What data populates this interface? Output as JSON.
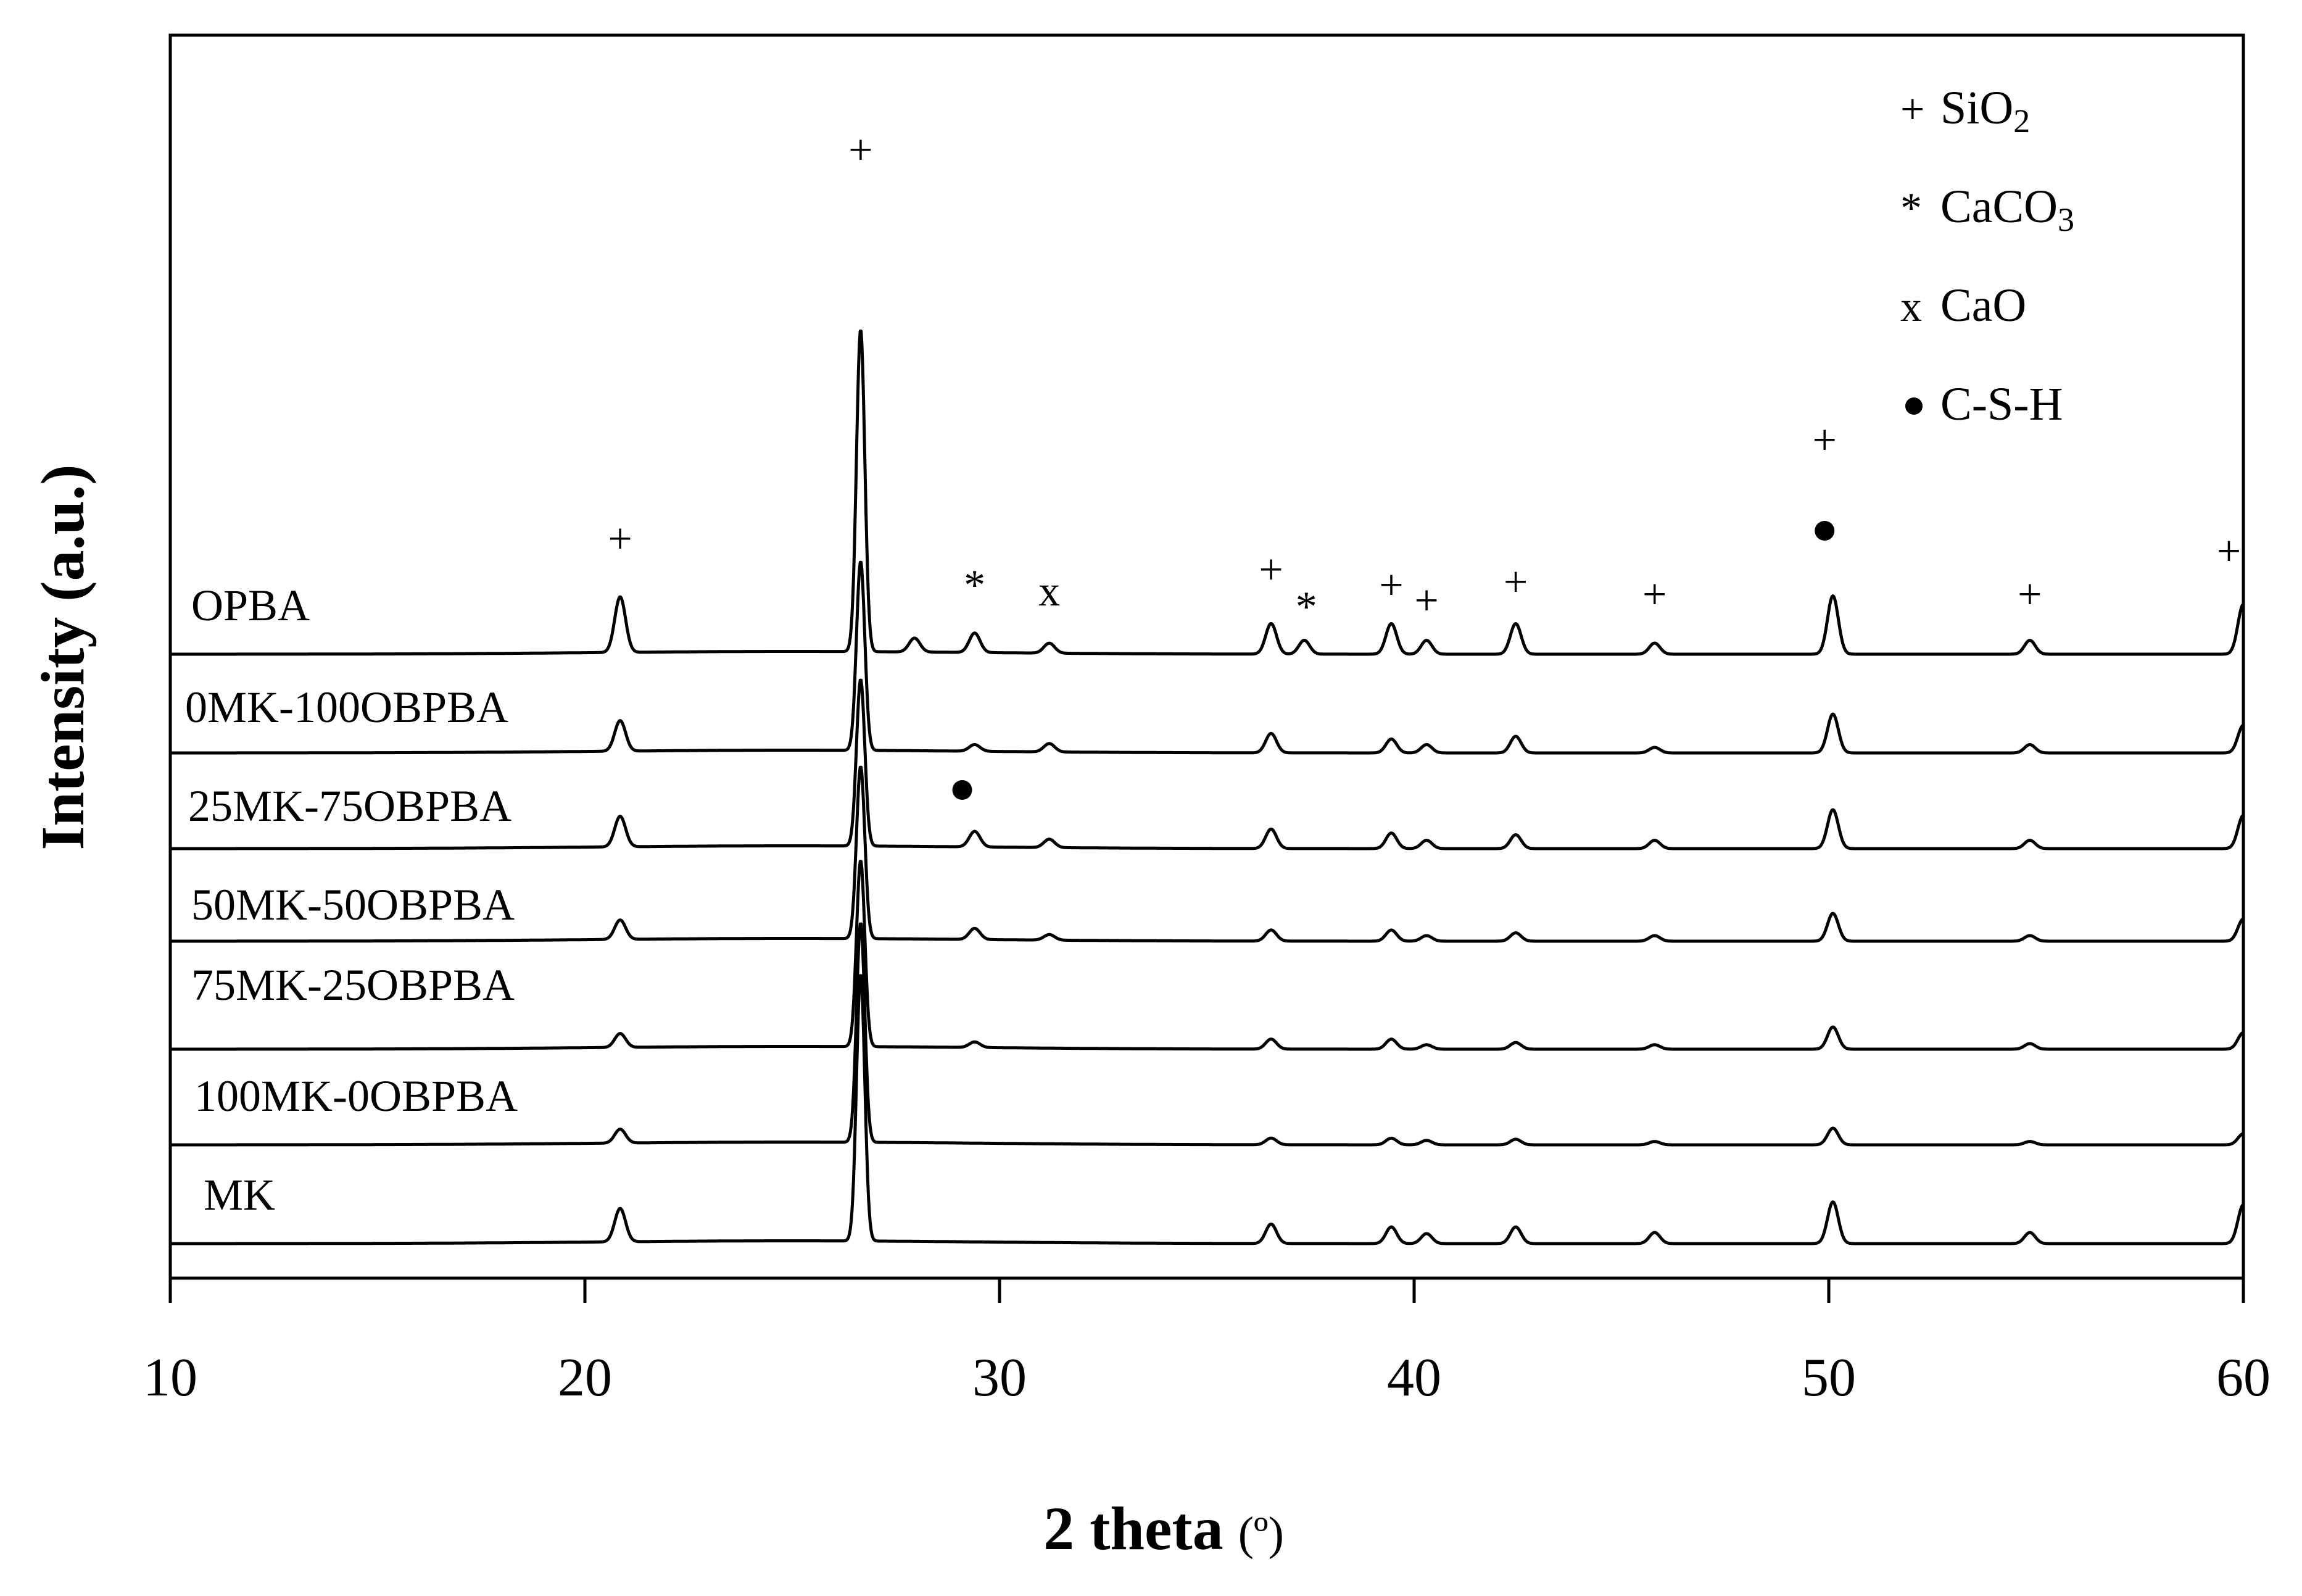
{
  "chart_data": {
    "type": "line",
    "xlabel": "2 theta",
    "xlabel_unit": "(º)",
    "ylabel": "Intensity (a.u.)",
    "xlim": [
      10,
      60
    ],
    "xticks": [
      "10",
      "20",
      "30",
      "40",
      "50",
      "60"
    ],
    "grid": false,
    "legend_position": "top-right",
    "legend": [
      {
        "symbol": "+",
        "label": "SiO",
        "sub": "2"
      },
      {
        "symbol": "*",
        "label": "CaCO",
        "sub": "3"
      },
      {
        "symbol": "x",
        "label": "CaO",
        "sub": ""
      },
      {
        "symbol": "●",
        "label": "C-S-H",
        "sub": ""
      }
    ],
    "series": [
      {
        "name": "OPBA",
        "baseline": 1.0,
        "peaks": [
          {
            "x": 20.85,
            "h": 1.0
          },
          {
            "x": 26.65,
            "h": 5.8
          },
          {
            "x": 27.95,
            "h": 0.25
          },
          {
            "x": 29.4,
            "h": 0.35
          },
          {
            "x": 31.2,
            "h": 0.18
          },
          {
            "x": 36.55,
            "h": 0.55
          },
          {
            "x": 37.35,
            "h": 0.25
          },
          {
            "x": 39.45,
            "h": 0.55
          },
          {
            "x": 40.3,
            "h": 0.25
          },
          {
            "x": 42.45,
            "h": 0.55
          },
          {
            "x": 45.8,
            "h": 0.2
          },
          {
            "x": 50.1,
            "h": 1.05
          },
          {
            "x": 54.85,
            "h": 0.25
          },
          {
            "x": 60.0,
            "h": 0.9
          }
        ]
      },
      {
        "name": "0MK-100OBPBA",
        "baseline": 0.8,
        "peaks": [
          {
            "x": 20.85,
            "h": 0.55
          },
          {
            "x": 26.65,
            "h": 3.4
          },
          {
            "x": 29.4,
            "h": 0.12
          },
          {
            "x": 31.2,
            "h": 0.15
          },
          {
            "x": 36.55,
            "h": 0.35
          },
          {
            "x": 39.45,
            "h": 0.25
          },
          {
            "x": 40.3,
            "h": 0.15
          },
          {
            "x": 42.45,
            "h": 0.3
          },
          {
            "x": 45.8,
            "h": 0.1
          },
          {
            "x": 50.1,
            "h": 0.7
          },
          {
            "x": 54.85,
            "h": 0.15
          },
          {
            "x": 60.0,
            "h": 0.5
          }
        ]
      },
      {
        "name": "25MK-75OBPBA",
        "baseline": 0.8,
        "peaks": [
          {
            "x": 20.85,
            "h": 0.55
          },
          {
            "x": 26.65,
            "h": 3.0
          },
          {
            "x": 29.4,
            "h": 0.28
          },
          {
            "x": 31.2,
            "h": 0.15
          },
          {
            "x": 36.55,
            "h": 0.35
          },
          {
            "x": 39.45,
            "h": 0.28
          },
          {
            "x": 40.3,
            "h": 0.15
          },
          {
            "x": 42.45,
            "h": 0.25
          },
          {
            "x": 45.8,
            "h": 0.15
          },
          {
            "x": 50.1,
            "h": 0.7
          },
          {
            "x": 54.85,
            "h": 0.15
          },
          {
            "x": 60.0,
            "h": 0.6
          }
        ]
      },
      {
        "name": "50MK-50OBPBA",
        "baseline": 0.75,
        "peaks": [
          {
            "x": 20.85,
            "h": 0.35
          },
          {
            "x": 26.65,
            "h": 3.1
          },
          {
            "x": 29.4,
            "h": 0.2
          },
          {
            "x": 31.2,
            "h": 0.1
          },
          {
            "x": 36.55,
            "h": 0.2
          },
          {
            "x": 39.45,
            "h": 0.2
          },
          {
            "x": 40.3,
            "h": 0.1
          },
          {
            "x": 42.45,
            "h": 0.15
          },
          {
            "x": 45.8,
            "h": 0.1
          },
          {
            "x": 50.1,
            "h": 0.5
          },
          {
            "x": 54.85,
            "h": 0.1
          },
          {
            "x": 60.0,
            "h": 0.4
          }
        ]
      },
      {
        "name": "75MK-25OBPBA",
        "baseline": 0.75,
        "peaks": [
          {
            "x": 20.85,
            "h": 0.25
          },
          {
            "x": 26.65,
            "h": 3.35
          },
          {
            "x": 29.4,
            "h": 0.1
          },
          {
            "x": 36.55,
            "h": 0.18
          },
          {
            "x": 39.45,
            "h": 0.18
          },
          {
            "x": 40.3,
            "h": 0.08
          },
          {
            "x": 42.45,
            "h": 0.12
          },
          {
            "x": 45.8,
            "h": 0.08
          },
          {
            "x": 50.1,
            "h": 0.4
          },
          {
            "x": 54.85,
            "h": 0.1
          },
          {
            "x": 60.0,
            "h": 0.3
          }
        ]
      },
      {
        "name": "100MK-0OBPBA",
        "baseline": 0.9,
        "peaks": [
          {
            "x": 20.85,
            "h": 0.25
          },
          {
            "x": 26.65,
            "h": 3.95
          },
          {
            "x": 36.55,
            "h": 0.12
          },
          {
            "x": 39.45,
            "h": 0.12
          },
          {
            "x": 40.3,
            "h": 0.08
          },
          {
            "x": 42.45,
            "h": 0.1
          },
          {
            "x": 45.8,
            "h": 0.06
          },
          {
            "x": 50.1,
            "h": 0.3
          },
          {
            "x": 54.85,
            "h": 0.06
          },
          {
            "x": 60.0,
            "h": 0.2
          }
        ]
      },
      {
        "name": "MK",
        "baseline": 0.6,
        "peaks": [
          {
            "x": 20.85,
            "h": 0.6
          },
          {
            "x": 26.65,
            "h": 4.8
          },
          {
            "x": 36.55,
            "h": 0.35
          },
          {
            "x": 39.45,
            "h": 0.3
          },
          {
            "x": 40.3,
            "h": 0.18
          },
          {
            "x": 42.45,
            "h": 0.3
          },
          {
            "x": 45.8,
            "h": 0.2
          },
          {
            "x": 50.1,
            "h": 0.75
          },
          {
            "x": 54.85,
            "h": 0.2
          },
          {
            "x": 60.0,
            "h": 0.7
          }
        ]
      }
    ],
    "annotations": [
      {
        "symbol": "+",
        "x": 20.85
      },
      {
        "symbol": "+",
        "x": 26.65
      },
      {
        "symbol": "*",
        "x": 29.4
      },
      {
        "symbol": "x",
        "x": 31.2
      },
      {
        "symbol": "+",
        "x": 36.55
      },
      {
        "symbol": "*",
        "x": 37.4
      },
      {
        "symbol": "+",
        "x": 39.45
      },
      {
        "symbol": "+",
        "x": 40.3
      },
      {
        "symbol": "+",
        "x": 42.45
      },
      {
        "symbol": "+",
        "x": 45.8
      },
      {
        "symbol": "+",
        "x": 49.9
      },
      {
        "symbol": "●",
        "x": 49.9
      },
      {
        "symbol": "+",
        "x": 54.85
      },
      {
        "symbol": "+",
        "x": 59.65
      },
      {
        "symbol": "●",
        "x": 29.1,
        "series": "25MK-75OBPBA"
      }
    ]
  }
}
